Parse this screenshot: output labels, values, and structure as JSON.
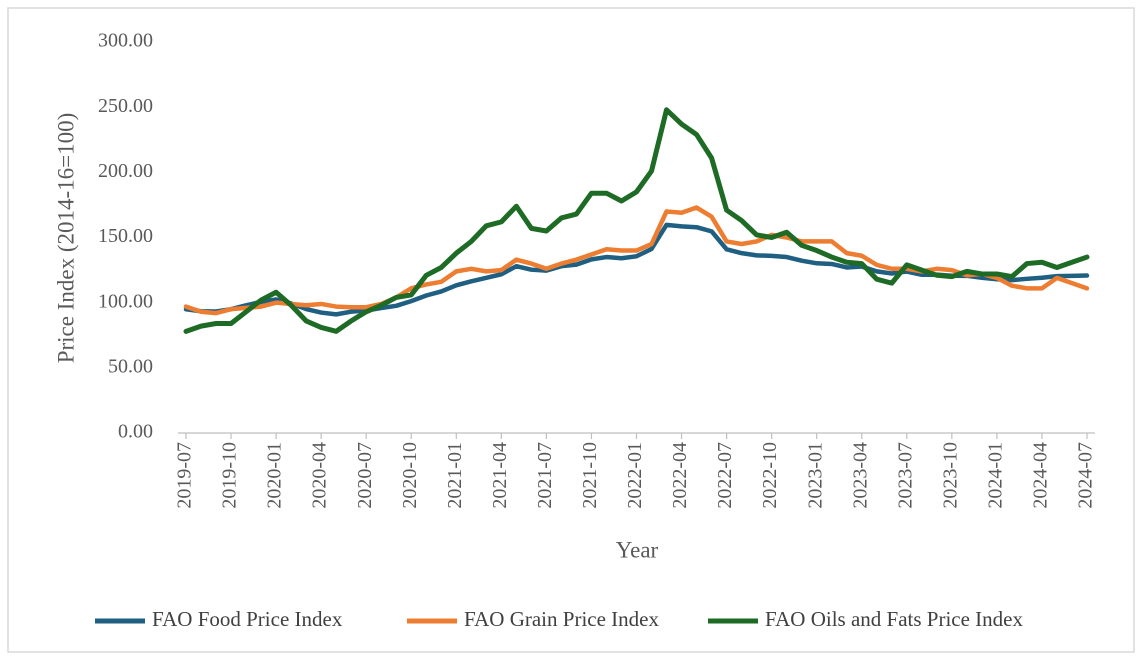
{
  "chart_data": {
    "type": "line",
    "y_label": "Price Index (2014-16=100)",
    "x_label": "Year",
    "categories": [
      "2019-07",
      null,
      null,
      "2019-10",
      null,
      null,
      "2020-01",
      null,
      null,
      "2020-04",
      null,
      null,
      "2020-07",
      null,
      null,
      "2020-10",
      null,
      null,
      "2021-01",
      null,
      null,
      "2021-04",
      null,
      null,
      "2021-07",
      null,
      null,
      "2021-10",
      null,
      null,
      "2022-01",
      null,
      null,
      "2022-04",
      null,
      null,
      "2022-07",
      null,
      null,
      "2022-10",
      null,
      null,
      "2023-01",
      null,
      null,
      "2023-04",
      null,
      null,
      "2023-07",
      null,
      null,
      "2023-10",
      null,
      null,
      "2024-01",
      null,
      null,
      "2024-04",
      null,
      null,
      "2024-07"
    ],
    "series": [
      {
        "name": "FAO Food Price Index",
        "color": "#1f5f82",
        "values": [
          94.9,
          93.4,
          93.2,
          95.0,
          98.0,
          100.6,
          102.5,
          99.4,
          95.1,
          92.4,
          91.0,
          93.1,
          94.0,
          95.9,
          97.6,
          101.2,
          105.5,
          108.6,
          113.3,
          116.4,
          119.1,
          121.8,
          128.0,
          125.3,
          124.6,
          128.0,
          129.2,
          133.2,
          135.0,
          134.1,
          135.6,
          141.2,
          159.7,
          158.5,
          157.9,
          154.7,
          140.9,
          138.0,
          136.3,
          135.9,
          135.0,
          132.2,
          130.2,
          129.7,
          127.0,
          127.7,
          124.0,
          122.4,
          123.9,
          121.4,
          121.5,
          120.7,
          120.6,
          119.1,
          118.0,
          117.3,
          118.3,
          119.1,
          120.4,
          120.6,
          120.8
        ]
      },
      {
        "name": "FAO Grain Price Index",
        "color": "#ed7d31",
        "values": [
          97,
          93,
          92,
          95,
          96,
          97,
          100,
          99,
          98,
          99,
          97,
          96.5,
          96.5,
          99,
          104,
          111,
          114,
          116,
          124,
          126,
          124,
          125,
          133,
          130,
          126,
          130,
          133,
          137,
          141,
          140,
          140,
          145,
          170,
          169,
          173,
          166,
          147,
          145,
          147,
          152,
          150,
          147,
          147,
          147,
          138,
          136,
          129,
          126,
          126,
          124,
          126,
          125,
          121,
          122,
          119,
          113,
          111,
          111,
          119,
          115,
          111
        ]
      },
      {
        "name": "FAO Oils and Fats Price Index",
        "color": "#1e6b25",
        "values": [
          78,
          82,
          84,
          84,
          93,
          102,
          108,
          98,
          86,
          81,
          78,
          86,
          93,
          98,
          104,
          106,
          121,
          127,
          138,
          147,
          159,
          162,
          174,
          157,
          155,
          165,
          168,
          184,
          184,
          178,
          185,
          201,
          248,
          237,
          229,
          211,
          171,
          163,
          152,
          150,
          154,
          144,
          140,
          135,
          131,
          130,
          118,
          115,
          129,
          125,
          121,
          120,
          124,
          122,
          122,
          120,
          130,
          131,
          127,
          131,
          135
        ]
      }
    ],
    "ylim": [
      0,
      300
    ],
    "yticks": [
      {
        "value": 0,
        "label": "0.00"
      },
      {
        "value": 50,
        "label": "50.00"
      },
      {
        "value": 100,
        "label": "100.00"
      },
      {
        "value": 150,
        "label": "150.00"
      },
      {
        "value": 200,
        "label": "200.00"
      },
      {
        "value": 250,
        "label": "250.00"
      },
      {
        "value": 300,
        "label": "300.00"
      }
    ],
    "grid": false,
    "legend": "bottom"
  }
}
